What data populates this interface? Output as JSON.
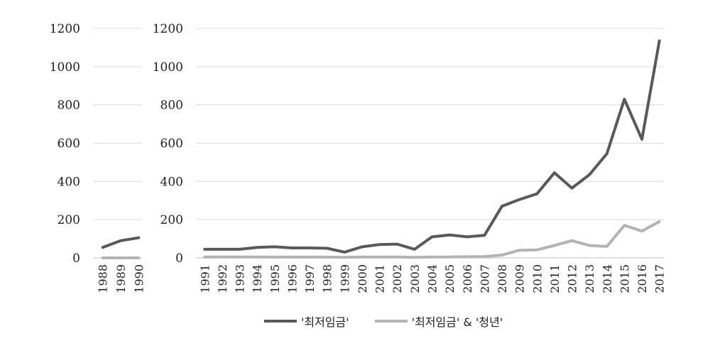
{
  "chart_data": [
    {
      "type": "line",
      "x": [
        "1988",
        "1989",
        "1990"
      ],
      "series": [
        {
          "name": "'최저임금'",
          "values": [
            55,
            90,
            105
          ]
        },
        {
          "name": "'최저임금' & '청년'",
          "values": [
            0,
            0,
            0
          ]
        }
      ],
      "yticks": [
        "0",
        "200",
        "400",
        "600",
        "800",
        "1000",
        "1200"
      ],
      "ylim": [
        0,
        1200
      ],
      "grid": true
    },
    {
      "type": "line",
      "x": [
        "1991",
        "1992",
        "1993",
        "1994",
        "1995",
        "1996",
        "1997",
        "1998",
        "1999",
        "2000",
        "2001",
        "2002",
        "2003",
        "2004",
        "2005",
        "2006",
        "2007",
        "2008",
        "2009",
        "2010",
        "2011",
        "2012",
        "2013",
        "2014",
        "2015",
        "2016",
        "2017"
      ],
      "series": [
        {
          "name": "'최저임금'",
          "values": [
            45,
            45,
            45,
            55,
            58,
            52,
            52,
            50,
            30,
            58,
            70,
            72,
            45,
            110,
            120,
            110,
            118,
            270,
            305,
            335,
            445,
            365,
            435,
            545,
            830,
            620,
            1135
          ]
        },
        {
          "name": "'최저임금' & '청년'",
          "values": [
            5,
            5,
            5,
            5,
            4,
            4,
            4,
            4,
            3,
            5,
            5,
            5,
            3,
            5,
            5,
            6,
            7,
            15,
            40,
            42,
            65,
            90,
            65,
            60,
            170,
            140,
            190
          ]
        }
      ],
      "yticks": [
        "0",
        "200",
        "400",
        "600",
        "800",
        "1000",
        "1200"
      ],
      "ylim": [
        0,
        1200
      ],
      "grid": true
    }
  ],
  "legend": {
    "items": [
      {
        "label": "'최저임금'",
        "color": "#595959"
      },
      {
        "label": "'최저임금' & '청년'",
        "color": "#b3b3b3"
      }
    ]
  },
  "colors": {
    "series1": "#595959",
    "series2": "#b3b3b3",
    "grid": "#d9d9d9"
  }
}
